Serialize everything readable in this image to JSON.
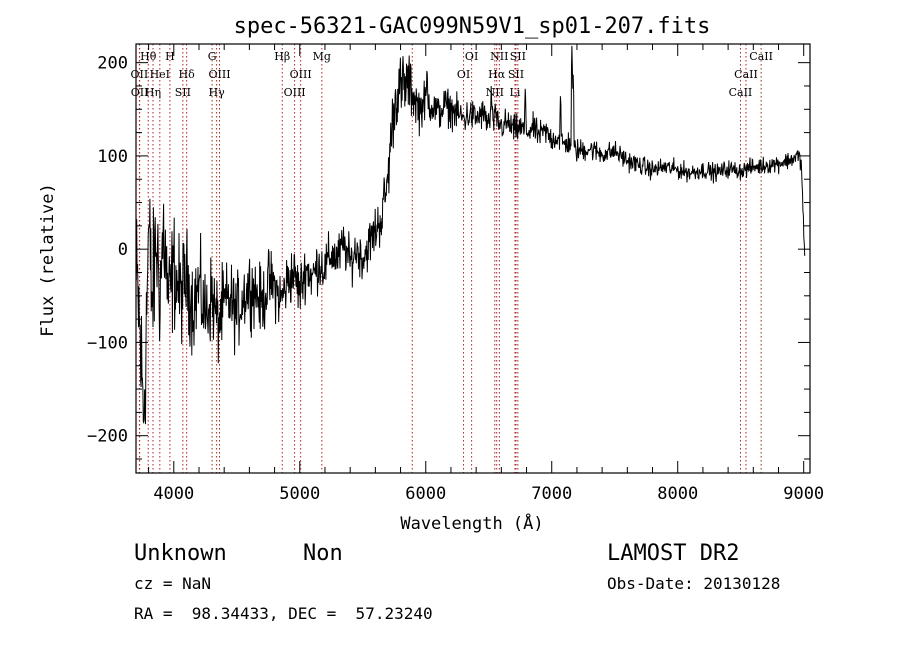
{
  "chart_data": {
    "type": "line",
    "title": "spec-56321-GAC099N59V1_sp01-207.fits",
    "xlabel": "Wavelength (Å)",
    "ylabel": "Flux (relative)",
    "xlim": [
      3700,
      9050
    ],
    "ylim": [
      -240,
      220
    ],
    "x_ticks": [
      4000,
      5000,
      6000,
      7000,
      8000,
      9000
    ],
    "y_ticks": [
      -200,
      -100,
      0,
      100,
      200
    ],
    "x_tick_labels": [
      "4000",
      "5000",
      "6000",
      "7000",
      "8000",
      "9000"
    ],
    "y_tick_labels": [
      "−200",
      "−100",
      "0",
      "100",
      "200"
    ],
    "grid": false,
    "series": [
      {
        "color": "#000000",
        "anchors": [
          [
            3700,
            -40
          ],
          [
            3720,
            -60
          ],
          [
            3740,
            -120
          ],
          [
            3760,
            -180
          ],
          [
            3780,
            -90
          ],
          [
            3800,
            20
          ],
          [
            3830,
            -60
          ],
          [
            3860,
            10
          ],
          [
            3890,
            -40
          ],
          [
            3920,
            20
          ],
          [
            3960,
            -60
          ],
          [
            4000,
            -20
          ],
          [
            4050,
            -50
          ],
          [
            4100,
            -30
          ],
          [
            4150,
            -60
          ],
          [
            4200,
            -40
          ],
          [
            4250,
            -70
          ],
          [
            4300,
            -50
          ],
          [
            4350,
            -80
          ],
          [
            4400,
            -60
          ],
          [
            4450,
            -55
          ],
          [
            4500,
            -70
          ],
          [
            4550,
            -50
          ],
          [
            4600,
            -40
          ],
          [
            4650,
            -45
          ],
          [
            4700,
            -60
          ],
          [
            4750,
            -35
          ],
          [
            4800,
            -40
          ],
          [
            4850,
            -55
          ],
          [
            4900,
            -35
          ],
          [
            4950,
            -25
          ],
          [
            5000,
            -45
          ],
          [
            5050,
            -20
          ],
          [
            5100,
            -30
          ],
          [
            5150,
            -15
          ],
          [
            5200,
            -20
          ],
          [
            5250,
            -5
          ],
          [
            5300,
            -10
          ],
          [
            5350,
            5
          ],
          [
            5400,
            -15
          ],
          [
            5450,
            0
          ],
          [
            5500,
            -10
          ],
          [
            5550,
            5
          ],
          [
            5600,
            20
          ],
          [
            5650,
            35
          ],
          [
            5700,
            75
          ],
          [
            5730,
            130
          ],
          [
            5760,
            160
          ],
          [
            5790,
            175
          ],
          [
            5820,
            165
          ],
          [
            5850,
            180
          ],
          [
            5900,
            165
          ],
          [
            5950,
            150
          ],
          [
            6000,
            160
          ],
          [
            6050,
            155
          ],
          [
            6100,
            145
          ],
          [
            6150,
            155
          ],
          [
            6200,
            150
          ],
          [
            6250,
            145
          ],
          [
            6300,
            140
          ],
          [
            6350,
            145
          ],
          [
            6400,
            140
          ],
          [
            6450,
            145
          ],
          [
            6500,
            135
          ],
          [
            6550,
            140
          ],
          [
            6600,
            132
          ],
          [
            6650,
            135
          ],
          [
            6700,
            128
          ],
          [
            6750,
            130
          ],
          [
            6800,
            125
          ],
          [
            6850,
            130
          ],
          [
            6900,
            122
          ],
          [
            6950,
            126
          ],
          [
            7000,
            118
          ],
          [
            7050,
            120
          ],
          [
            7100,
            112
          ],
          [
            7150,
            115
          ],
          [
            7200,
            105
          ],
          [
            7300,
            108
          ],
          [
            7400,
            102
          ],
          [
            7500,
            105
          ],
          [
            7600,
            95
          ],
          [
            7700,
            90
          ],
          [
            7800,
            85
          ],
          [
            7900,
            88
          ],
          [
            8000,
            85
          ],
          [
            8100,
            82
          ],
          [
            8200,
            85
          ],
          [
            8300,
            82
          ],
          [
            8400,
            86
          ],
          [
            8500,
            84
          ],
          [
            8600,
            88
          ],
          [
            8700,
            90
          ],
          [
            8800,
            92
          ],
          [
            8900,
            96
          ],
          [
            8950,
            100
          ],
          [
            8980,
            95
          ],
          [
            9000,
            20
          ],
          [
            9010,
            -10
          ]
        ],
        "spikes": [
          [
            7160,
            218
          ],
          [
            5820,
            210
          ],
          [
            5880,
            205
          ],
          [
            6010,
            200
          ],
          [
            6520,
            178
          ],
          [
            6790,
            178
          ],
          [
            7070,
            170
          ],
          [
            7170,
            190
          ]
        ],
        "noise": [
          [
            3700,
            80
          ],
          [
            3850,
            65
          ],
          [
            4100,
            45
          ],
          [
            4500,
            35
          ],
          [
            5000,
            25
          ],
          [
            5500,
            20
          ],
          [
            5800,
            30
          ],
          [
            6000,
            18
          ],
          [
            6500,
            14
          ],
          [
            7000,
            12
          ],
          [
            7600,
            9
          ],
          [
            8500,
            8
          ],
          [
            9000,
            8
          ]
        ]
      }
    ],
    "lines": [
      {
        "label": "Hθ",
        "x": 3797,
        "row": 0
      },
      {
        "label": "OII",
        "x": 3727,
        "row": 1
      },
      {
        "label": "OII",
        "x": 3729,
        "row": 2
      },
      {
        "label": "H",
        "x": 3969,
        "row": 0
      },
      {
        "label": "HeI",
        "x": 3889,
        "row": 1
      },
      {
        "label": "Hη",
        "x": 3835,
        "row": 2
      },
      {
        "label": "Hδ",
        "x": 4102,
        "row": 1
      },
      {
        "label": "SII",
        "x": 4072,
        "row": 2
      },
      {
        "label": "G",
        "x": 4304,
        "row": 0
      },
      {
        "label": "OIII",
        "x": 4363,
        "row": 1
      },
      {
        "label": "Hγ",
        "x": 4340,
        "row": 2
      },
      {
        "label": "Hβ",
        "x": 4861,
        "row": 0
      },
      {
        "label": "OIII",
        "x": 5007,
        "row": 1
      },
      {
        "label": "OIII",
        "x": 4959,
        "row": 2
      },
      {
        "label": "Mg",
        "x": 5175,
        "row": 0
      },
      {
        "label": "",
        "x": 5893,
        "row": 3
      },
      {
        "label": "OI",
        "x": 6364,
        "row": 0
      },
      {
        "label": "OI",
        "x": 6300,
        "row": 1
      },
      {
        "label": "NII",
        "x": 6584,
        "row": 0
      },
      {
        "label": "Hα",
        "x": 6563,
        "row": 1
      },
      {
        "label": "NII",
        "x": 6548,
        "row": 2
      },
      {
        "label": "SII",
        "x": 6731,
        "row": 0
      },
      {
        "label": "SII",
        "x": 6716,
        "row": 1
      },
      {
        "label": "Li",
        "x": 6708,
        "row": 2
      },
      {
        "label": "CaII",
        "x": 8662,
        "row": 0
      },
      {
        "label": "CaII",
        "x": 8542,
        "row": 1
      },
      {
        "label": "CaII",
        "x": 8498,
        "row": 2
      }
    ]
  },
  "info": {
    "class": "Unknown",
    "subclass": "Non",
    "survey": "LAMOST DR2",
    "cz": "cz = NaN",
    "obs_date": "Obs-Date: 20130128",
    "radec": "RA =  98.34433, DEC =  57.23240"
  }
}
